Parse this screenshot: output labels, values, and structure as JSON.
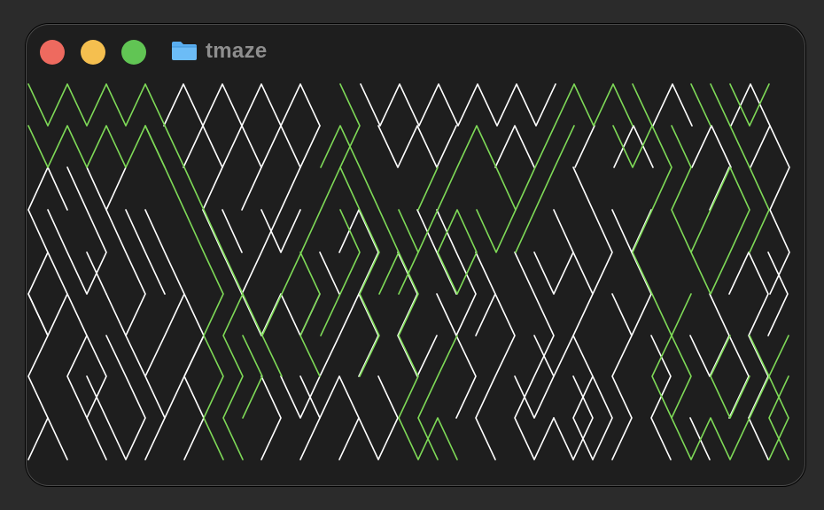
{
  "window": {
    "title": "tmaze",
    "folder_icon": "folder-icon"
  },
  "traffic_lights": {
    "close_color": "#ee6a5f",
    "minimize_color": "#f5bf4f",
    "zoom_color": "#61c554"
  },
  "maze": {
    "wall_color": "#ffffff",
    "path_color": "#7ed957",
    "background_color": "#1e1e1e"
  }
}
